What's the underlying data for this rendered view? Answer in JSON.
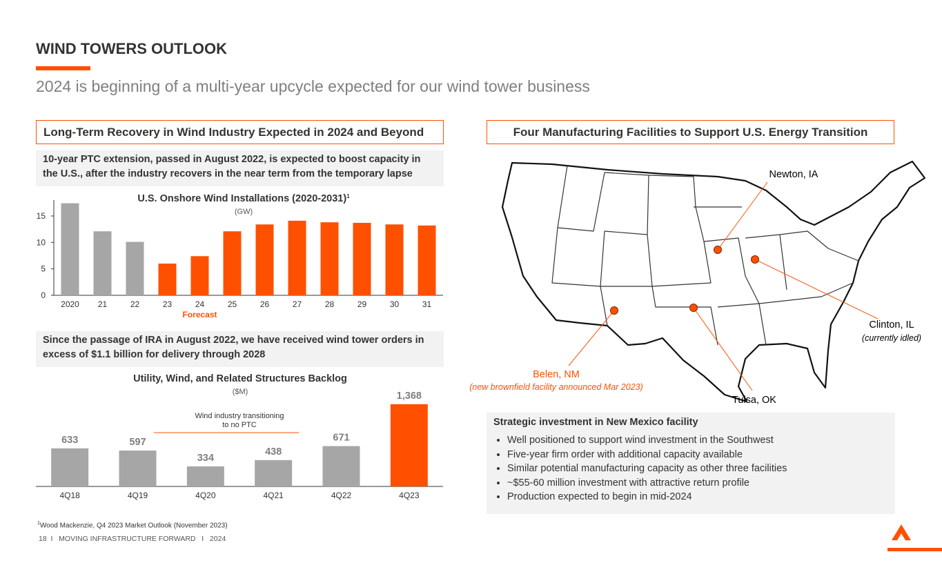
{
  "header": {
    "title": "WIND TOWERS OUTLOOK",
    "subtitle": "2024 is beginning of a multi-year upcycle expected for our wind tower business"
  },
  "left": {
    "heading": "Long-Term Recovery in Wind Industry Expected in 2024 and Beyond",
    "note_1": "10-year PTC extension, passed in August 2022, is expected to boost capacity in the U.S., after the industry recovers in the near term from the temporary lapse",
    "note_2": "Since the passage of IRA in August 2022, we have received wind tower orders in excess of $1.1 billion for delivery through 2028"
  },
  "chart_data": [
    {
      "type": "bar",
      "title": "U.S. Onshore Wind Installations (2020-2031)",
      "title_note": "1",
      "subtitle": "(GW)",
      "categories": [
        "2020",
        "21",
        "22",
        "23",
        "24",
        "25",
        "26",
        "27",
        "28",
        "29",
        "30",
        "31"
      ],
      "values": [
        17.4,
        12.1,
        10.1,
        6.0,
        7.4,
        12.1,
        13.4,
        14.1,
        13.8,
        13.7,
        13.4,
        13.2
      ],
      "colors": [
        "#a6a6a6",
        "#a6a6a6",
        "#a6a6a6",
        "#ff5000",
        "#ff5000",
        "#ff5000",
        "#ff5000",
        "#ff5000",
        "#ff5000",
        "#ff5000",
        "#ff5000",
        "#ff5000"
      ],
      "annotation": "Forecast",
      "ylim": [
        0,
        18
      ],
      "yticks": [
        0,
        5,
        10,
        15
      ],
      "grid": false
    },
    {
      "type": "bar",
      "title": "Utility, Wind, and Related Structures Backlog",
      "subtitle": "($M)",
      "categories": [
        "4Q18",
        "4Q19",
        "4Q20",
        "4Q21",
        "4Q22",
        "4Q23"
      ],
      "values": [
        633,
        597,
        334,
        438,
        671,
        1368
      ],
      "value_labels": [
        "633",
        "597",
        "334",
        "438",
        "671",
        "1,368"
      ],
      "colors": [
        "#a6a6a6",
        "#a6a6a6",
        "#a6a6a6",
        "#a6a6a6",
        "#a6a6a6",
        "#ff5000"
      ],
      "annotation": "Wind industry transitioning to no PTC",
      "ylim": [
        0,
        1400
      ],
      "grid": false
    }
  ],
  "right": {
    "heading": "Four Manufacturing Facilities to Support U.S. Energy Transition",
    "map_labels": {
      "newton": "Newton, IA",
      "clinton": "Clinton, IL",
      "clinton_note": "(currently idled)",
      "belen": "Belen, NM",
      "belen_note": "(new brownfield facility announced Mar 2023)",
      "tulsa": "Tulsa, OK"
    },
    "strategic": {
      "title": "Strategic investment in New Mexico facility",
      "bullets": [
        "Well positioned to support wind investment in the Southwest",
        "Five-year firm order with additional capacity available",
        "Similar potential manufacturing capacity as other three facilities",
        "~$55-60 million investment with attractive return profile",
        "Production expected to begin in mid-2024"
      ]
    }
  },
  "footnote": {
    "marker": "1",
    "text": "Wood Mackenzie, Q4 2023 Market Outlook (November 2023)"
  },
  "footer": "18  I   MOVING INFRASTRUCTURE FORWARD   I   2024"
}
